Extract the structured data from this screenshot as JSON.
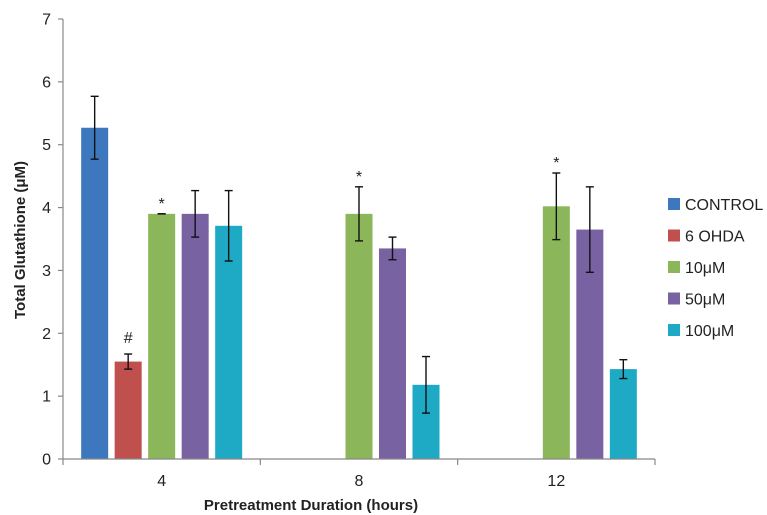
{
  "chart_data": {
    "type": "bar",
    "title": "",
    "xlabel": "Pretreatment Duration (hours)",
    "ylabel": "Total  Glutathione (μM)",
    "ylim": [
      0,
      7
    ],
    "yticks": [
      "0",
      "1",
      "2",
      "3",
      "4",
      "5",
      "6",
      "7"
    ],
    "categories": [
      "4",
      "8",
      "12"
    ],
    "grid": false,
    "legend_position": "right",
    "series": [
      {
        "name": "CONTROL",
        "color": "#3d78bf",
        "values": [
          5.27,
          null,
          null
        ],
        "errors": [
          0.5,
          null,
          null
        ],
        "annotations": [
          "",
          "",
          ""
        ]
      },
      {
        "name": "6 OHDA",
        "color": "#c0504d",
        "values": [
          1.55,
          null,
          null
        ],
        "errors": [
          0.12,
          null,
          null
        ],
        "annotations": [
          "#",
          "",
          ""
        ]
      },
      {
        "name": "10μM",
        "color": "#8cb65a",
        "values": [
          3.9,
          3.9,
          4.02
        ],
        "errors": [
          0.0,
          0.43,
          0.53
        ],
        "annotations": [
          "*",
          "*",
          "*"
        ]
      },
      {
        "name": "50μM",
        "color": "#7862a1",
        "values": [
          3.9,
          3.35,
          3.65
        ],
        "errors": [
          0.37,
          0.18,
          0.68
        ],
        "annotations": [
          "",
          "",
          ""
        ]
      },
      {
        "name": "100μM",
        "color": "#1ea9c4",
        "values": [
          3.71,
          1.18,
          1.43
        ],
        "errors": [
          0.56,
          0.45,
          0.15
        ],
        "annotations": [
          "",
          "",
          ""
        ]
      }
    ]
  }
}
